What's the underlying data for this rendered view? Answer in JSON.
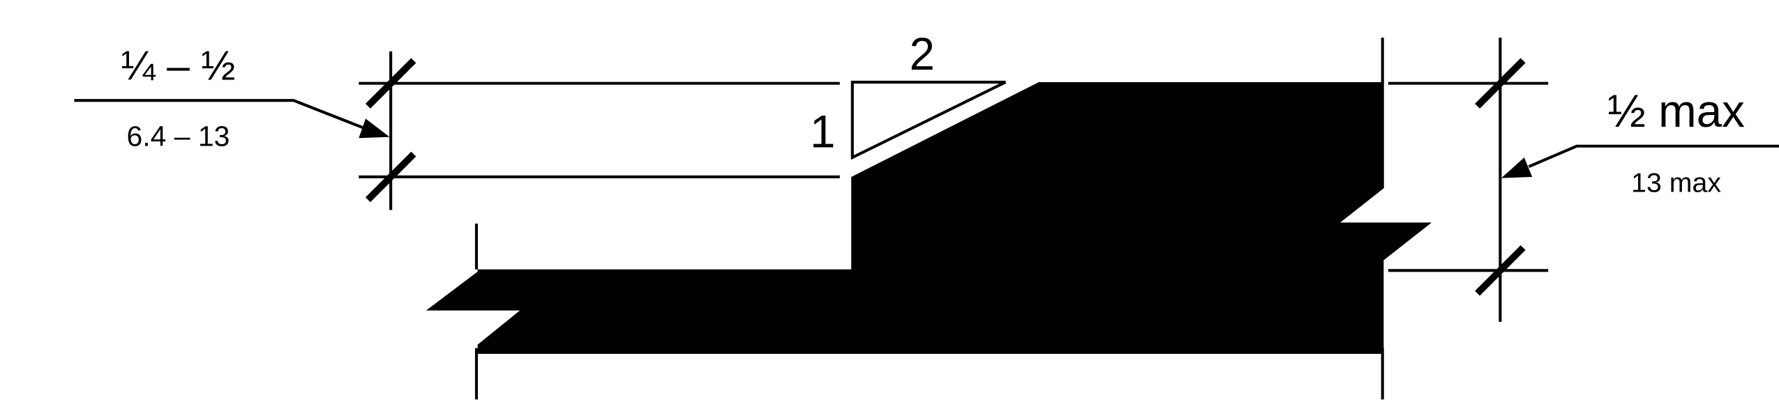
{
  "diagram": {
    "left_dimension": {
      "imperial": "¼ – ½",
      "metric": "6.4 – 13"
    },
    "slope": {
      "run": "2",
      "rise": "1"
    },
    "right_dimension": {
      "imperial": "½ max",
      "metric": "13 max"
    }
  }
}
